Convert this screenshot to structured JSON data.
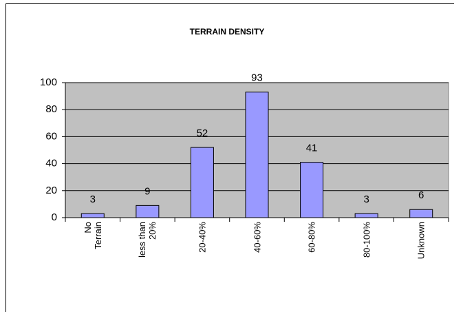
{
  "chart_data": {
    "type": "bar",
    "title": "TERRAIN DENSITY",
    "categories": [
      "No Terrain",
      "less than 20%",
      "20-40%",
      "40-60%",
      "60-80%",
      "80-100%",
      "Unknown"
    ],
    "values": [
      3,
      9,
      52,
      93,
      41,
      3,
      6
    ],
    "color": "#9999ff",
    "plot_background": "#c0c0c0",
    "ylim": [
      0,
      100
    ],
    "yticks": [
      0,
      20,
      40,
      60,
      80,
      100
    ],
    "grid": true
  }
}
